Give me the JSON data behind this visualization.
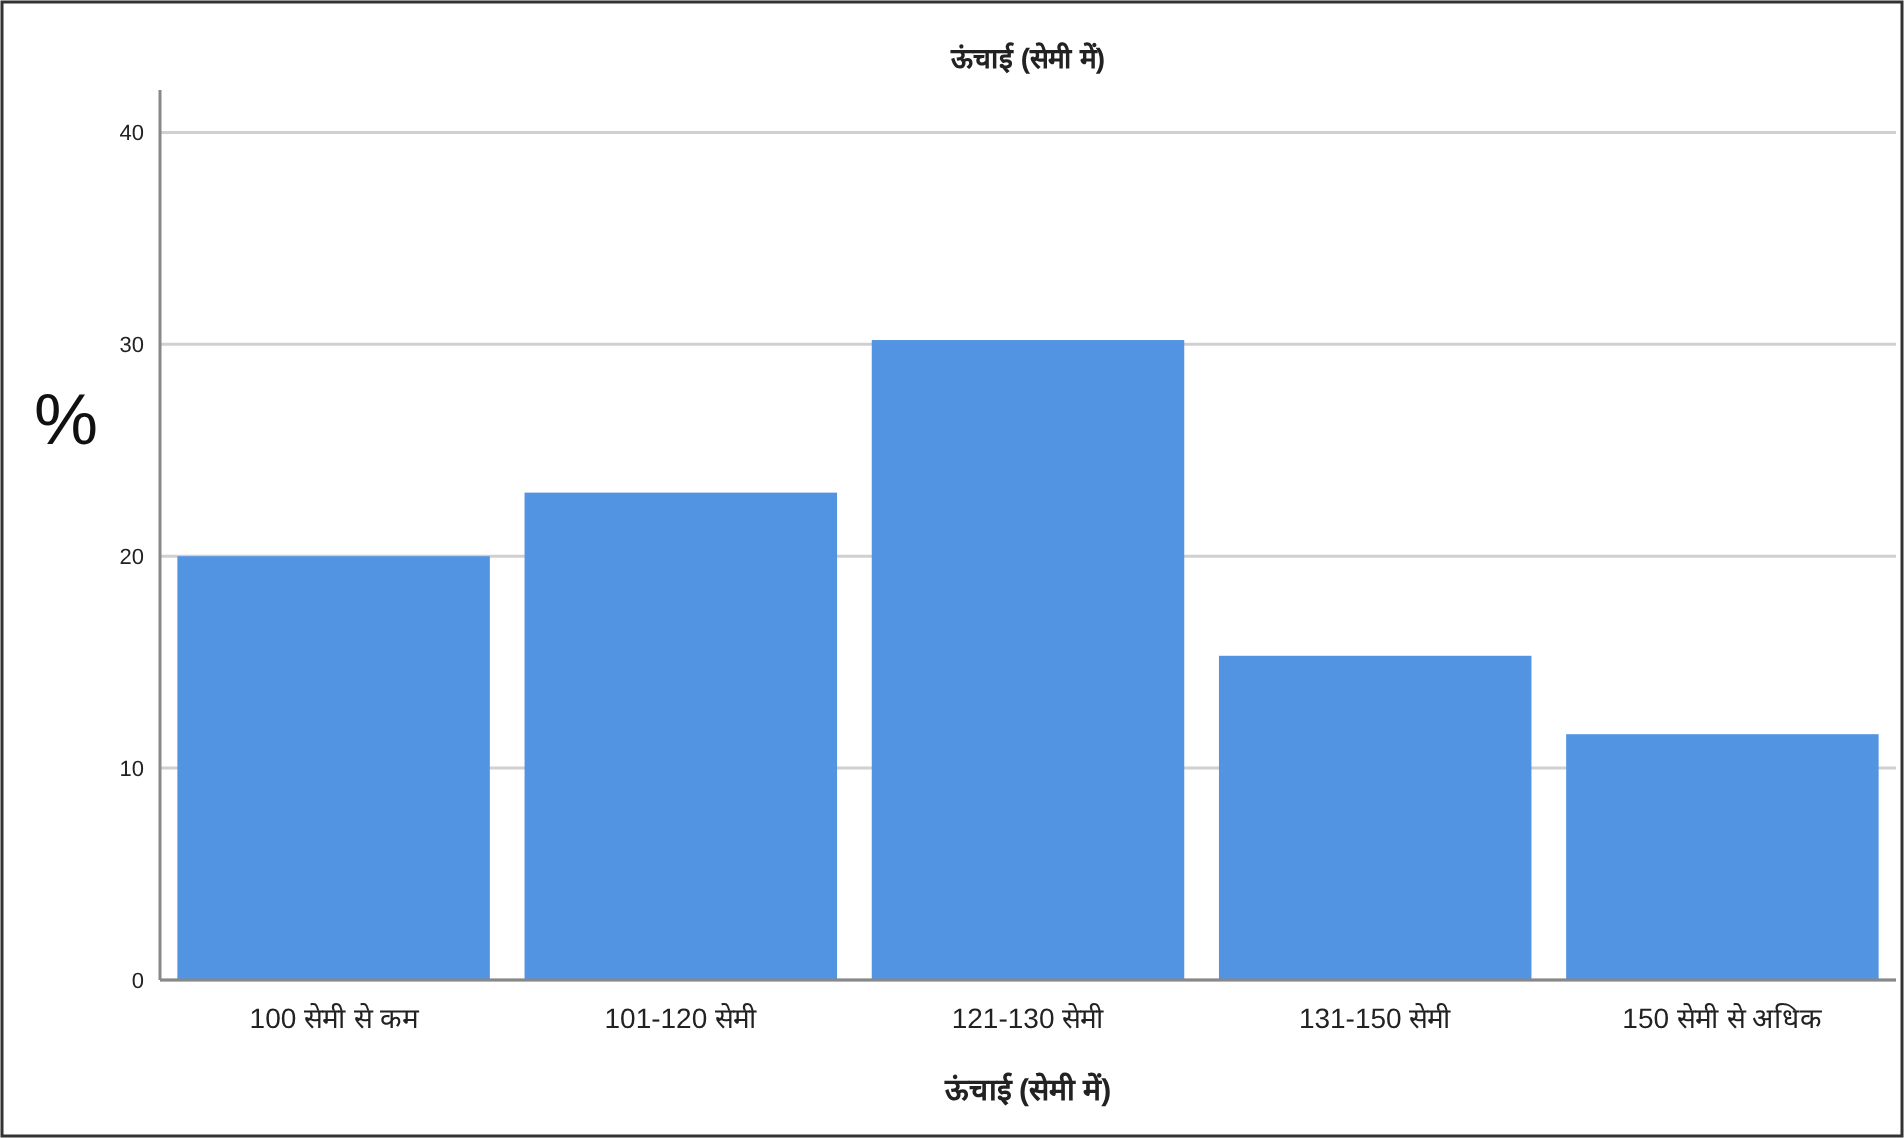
{
  "chart_data": {
    "type": "bar",
    "title": "ऊंचाई (सेमी में)",
    "xlabel": "ऊंचाई (सेमी में)",
    "ylabel": "%",
    "categories": [
      "100 सेमी से कम",
      "101-120 सेमी",
      "121-130 सेमी",
      "131-150 सेमी",
      "150 सेमी से अधिक"
    ],
    "values": [
      20.0,
      23.0,
      30.2,
      15.3,
      11.6
    ],
    "color": "#5294e2",
    "ylim": [
      0,
      42
    ],
    "yticks": [
      0,
      10,
      20,
      30,
      40
    ],
    "grid": "y"
  }
}
